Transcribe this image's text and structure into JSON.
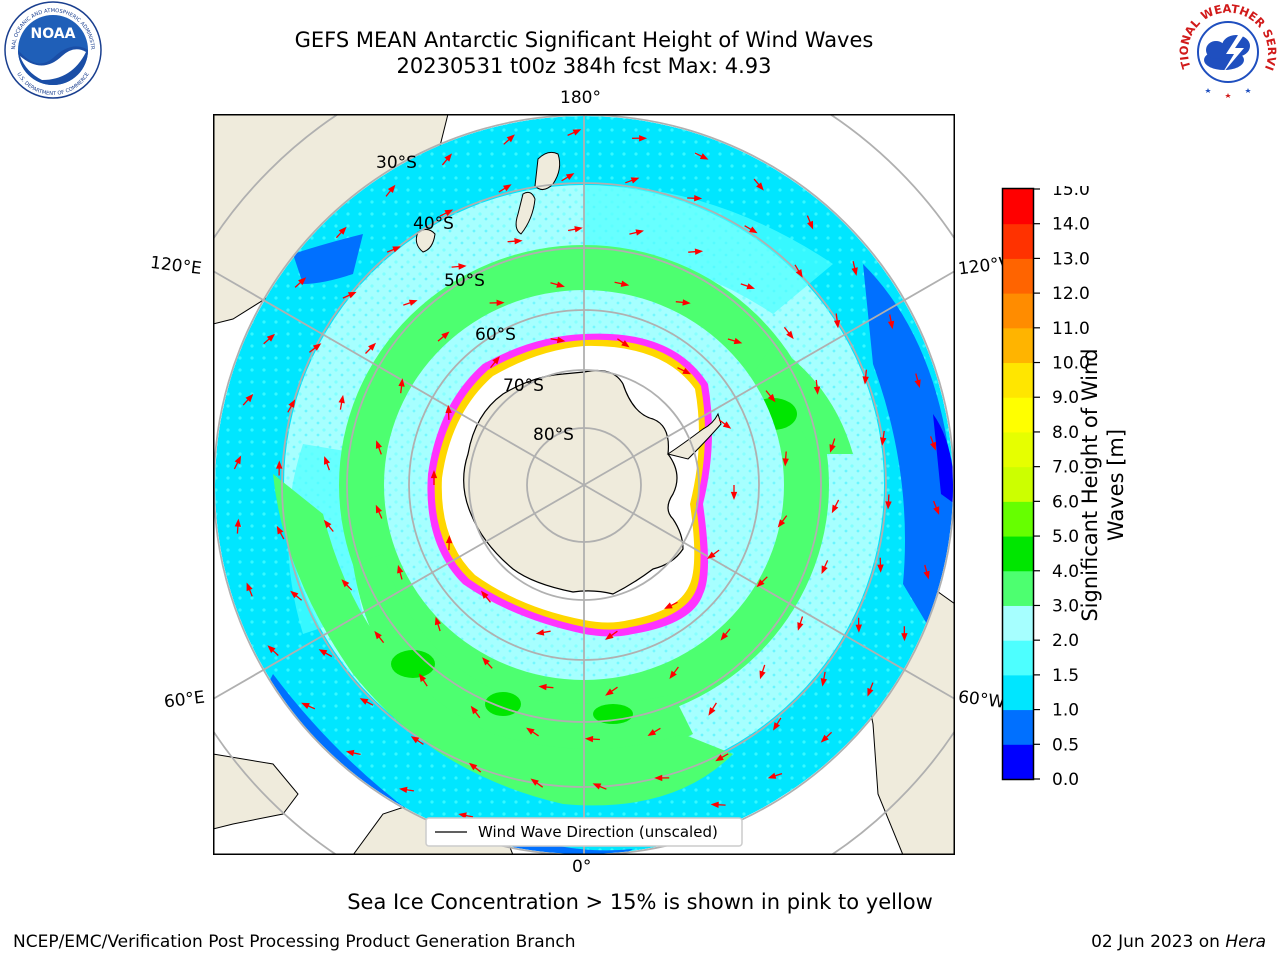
{
  "header": {
    "title_line1": "GEFS MEAN Antarctic Significant Height of Wind Waves",
    "title_line2": "20230531 t00z 384h fcst   Max: 4.93"
  },
  "logos": {
    "noaa_text": "NOAA",
    "noaa_ring_top": "NATIONAL OCEANIC AND ATMOSPHERIC ADMINISTRATION",
    "noaa_ring_bottom": "U.S. DEPARTMENT OF COMMERCE",
    "nws_ring": "NATIONAL WEATHER SERVICE"
  },
  "map": {
    "projection": "south polar stereographic",
    "lon_labels": {
      "top": "180°",
      "bottom": "0°",
      "left_upper": "120°E",
      "left_lower": "60°E",
      "right_upper": "120°W",
      "right_lower": "60°W"
    },
    "lat_labels": [
      "30°S",
      "40°S",
      "50°S",
      "60°S",
      "70°S",
      "80°S"
    ],
    "legend": "Wind Wave Direction (unscaled)",
    "colors": {
      "land": "#efebdc",
      "ice": "#ffffff",
      "grid": "#b0b0b0",
      "arrow": "#ff0000",
      "sea_ice_edge": "#ff33ff"
    }
  },
  "colorbar": {
    "label_line1": "Significant Height of Wind",
    "label_line2": "Waves [m]",
    "ticks": [
      "0.0",
      "0.5",
      "1.0",
      "1.5",
      "2.0",
      "3.0",
      "4.0",
      "5.0",
      "6.0",
      "7.0",
      "8.0",
      "9.0",
      "10.0",
      "11.0",
      "12.0",
      "13.0",
      "14.0",
      "15.0"
    ],
    "colors": [
      "#0000ff",
      "#0070ff",
      "#00e6ff",
      "#4dffff",
      "#a6ffff",
      "#4dff70",
      "#00e600",
      "#66ff00",
      "#ccff00",
      "#e6ff00",
      "#ffff00",
      "#ffe600",
      "#ffb400",
      "#ff8c00",
      "#ff6400",
      "#ff3200",
      "#ff0000"
    ]
  },
  "caption": "Sea Ice Concentration > 15% is shown in pink to yellow",
  "footer": {
    "left": "NCEP/EMC/Verification Post Processing Product Generation Branch",
    "right_prefix": "02 Jun 2023 on ",
    "right_machine": "Hera"
  }
}
